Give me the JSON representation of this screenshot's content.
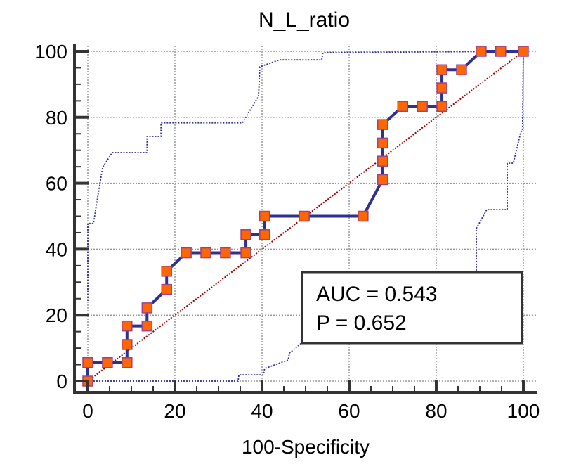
{
  "chart_data": {
    "type": "line",
    "title": "N_L_ratio",
    "xlabel": "100-Specificity",
    "ylabel": "",
    "xlim": [
      0,
      100
    ],
    "ylim": [
      0,
      100
    ],
    "grid": true,
    "xticks": [
      "0",
      "20",
      "40",
      "60",
      "80",
      "100"
    ],
    "yticks": [
      "0",
      "20",
      "40",
      "60",
      "80",
      "100"
    ],
    "annotation": {
      "auc": "AUC = 0.543",
      "p": "P = 0.652"
    },
    "colors": {
      "roc": "#2e3192",
      "marker": "#ff6600",
      "marker_edge": "#a0408a",
      "diagonal": "#990000",
      "ci": "#2e3192",
      "grid": "#999999"
    },
    "series": [
      {
        "name": "ROC curve",
        "x": [
          0,
          0,
          4.5,
          9,
          9,
          9,
          13.6,
          13.6,
          18.1,
          18.1,
          22.6,
          27.1,
          31.6,
          36.3,
          36.3,
          40.6,
          40.6,
          49.7,
          63.2,
          67.7,
          67.7,
          67.7,
          67.7,
          72.3,
          76.8,
          81.3,
          81.3,
          81.3,
          85.8,
          90.3,
          94.8,
          100
        ],
        "y": [
          0,
          5.6,
          5.6,
          5.6,
          11.1,
          16.7,
          16.7,
          22.2,
          27.8,
          33.3,
          38.9,
          38.9,
          38.9,
          38.9,
          44.4,
          44.4,
          50,
          50,
          50,
          61.1,
          66.7,
          72.2,
          77.8,
          83.3,
          83.3,
          83.3,
          88.9,
          94.4,
          94.4,
          100,
          100,
          100
        ]
      },
      {
        "name": "Upper confidence bound",
        "x": [
          0,
          0,
          1.3,
          2,
          3.4,
          5.6,
          13.6,
          13.6,
          16.8,
          16.8,
          35.5,
          39.2,
          39.5,
          44,
          53.7,
          54,
          100
        ],
        "y": [
          24.3,
          47.8,
          47.8,
          53.7,
          64.8,
          69.3,
          69.3,
          74.2,
          74.2,
          78.3,
          78.3,
          86.4,
          95.3,
          97.4,
          97.4,
          99.6,
          100
        ]
      },
      {
        "name": "Lower confidence bound",
        "x": [
          0,
          34.5,
          34.7,
          40.3,
          40.6,
          46,
          46.3,
          49,
          89.2,
          89.2,
          91.6,
          96.3,
          96.3,
          97.7,
          99.4,
          99.8,
          100
        ],
        "y": [
          0,
          0,
          1.9,
          1.9,
          3.8,
          6.4,
          8.5,
          11.5,
          33.5,
          46.3,
          52,
          52,
          66.1,
          66.1,
          75.5,
          76,
          100
        ]
      },
      {
        "name": "Reference line",
        "x": [
          0,
          100
        ],
        "y": [
          0,
          100
        ]
      }
    ]
  }
}
